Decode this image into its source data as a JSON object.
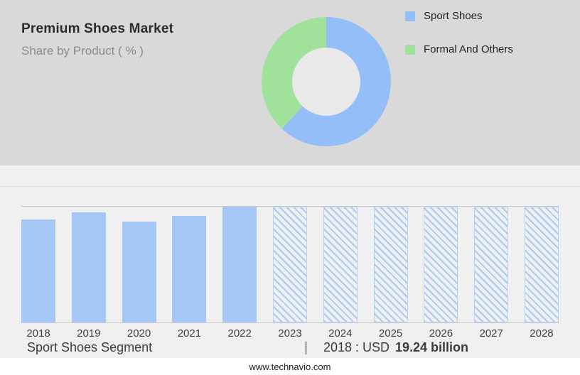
{
  "header": {
    "title": "Premium Shoes Market",
    "subtitle": "Share by Product ( % )"
  },
  "legend": {
    "items": [
      {
        "label": "Sport Shoes",
        "color": "#94bef8"
      },
      {
        "label": "Formal And Others",
        "color": "#a0e29c"
      }
    ]
  },
  "chart_data": [
    {
      "type": "pie",
      "title": "Share by Product ( % )",
      "donut": true,
      "labels": [
        "Sport Shoes",
        "Formal And Others"
      ],
      "values_percent": [
        62,
        38
      ],
      "colors": [
        "#94bef8",
        "#a0e29c"
      ],
      "start_angle": "top, clockwise",
      "legend_position": "right"
    },
    {
      "type": "bar",
      "categories": [
        "2018",
        "2019",
        "2020",
        "2021",
        "2022",
        "2023",
        "2024",
        "2025",
        "2026",
        "2027",
        "2028"
      ],
      "values_relative": [
        0.89,
        0.95,
        0.87,
        0.92,
        1.0,
        1.0,
        1.0,
        1.0,
        1.0,
        1.0,
        1.0
      ],
      "solid_years": [
        "2018",
        "2019",
        "2020",
        "2021",
        "2022"
      ],
      "hatched_forecast_years": [
        "2023",
        "2024",
        "2025",
        "2026",
        "2027",
        "2028"
      ],
      "bar_color": "#a6c8f7",
      "known_point": {
        "year": "2018",
        "value_text": "USD 19.24 billion"
      },
      "xlabel": "",
      "ylabel": "",
      "grid": "top and baseline lines only"
    }
  ],
  "caption": {
    "segment": "Sport Shoes Segment",
    "separator": "|",
    "year_label": "2018 : USD",
    "value_bold": "19.24 billion"
  },
  "footer": {
    "url": "www.technavio.com"
  }
}
